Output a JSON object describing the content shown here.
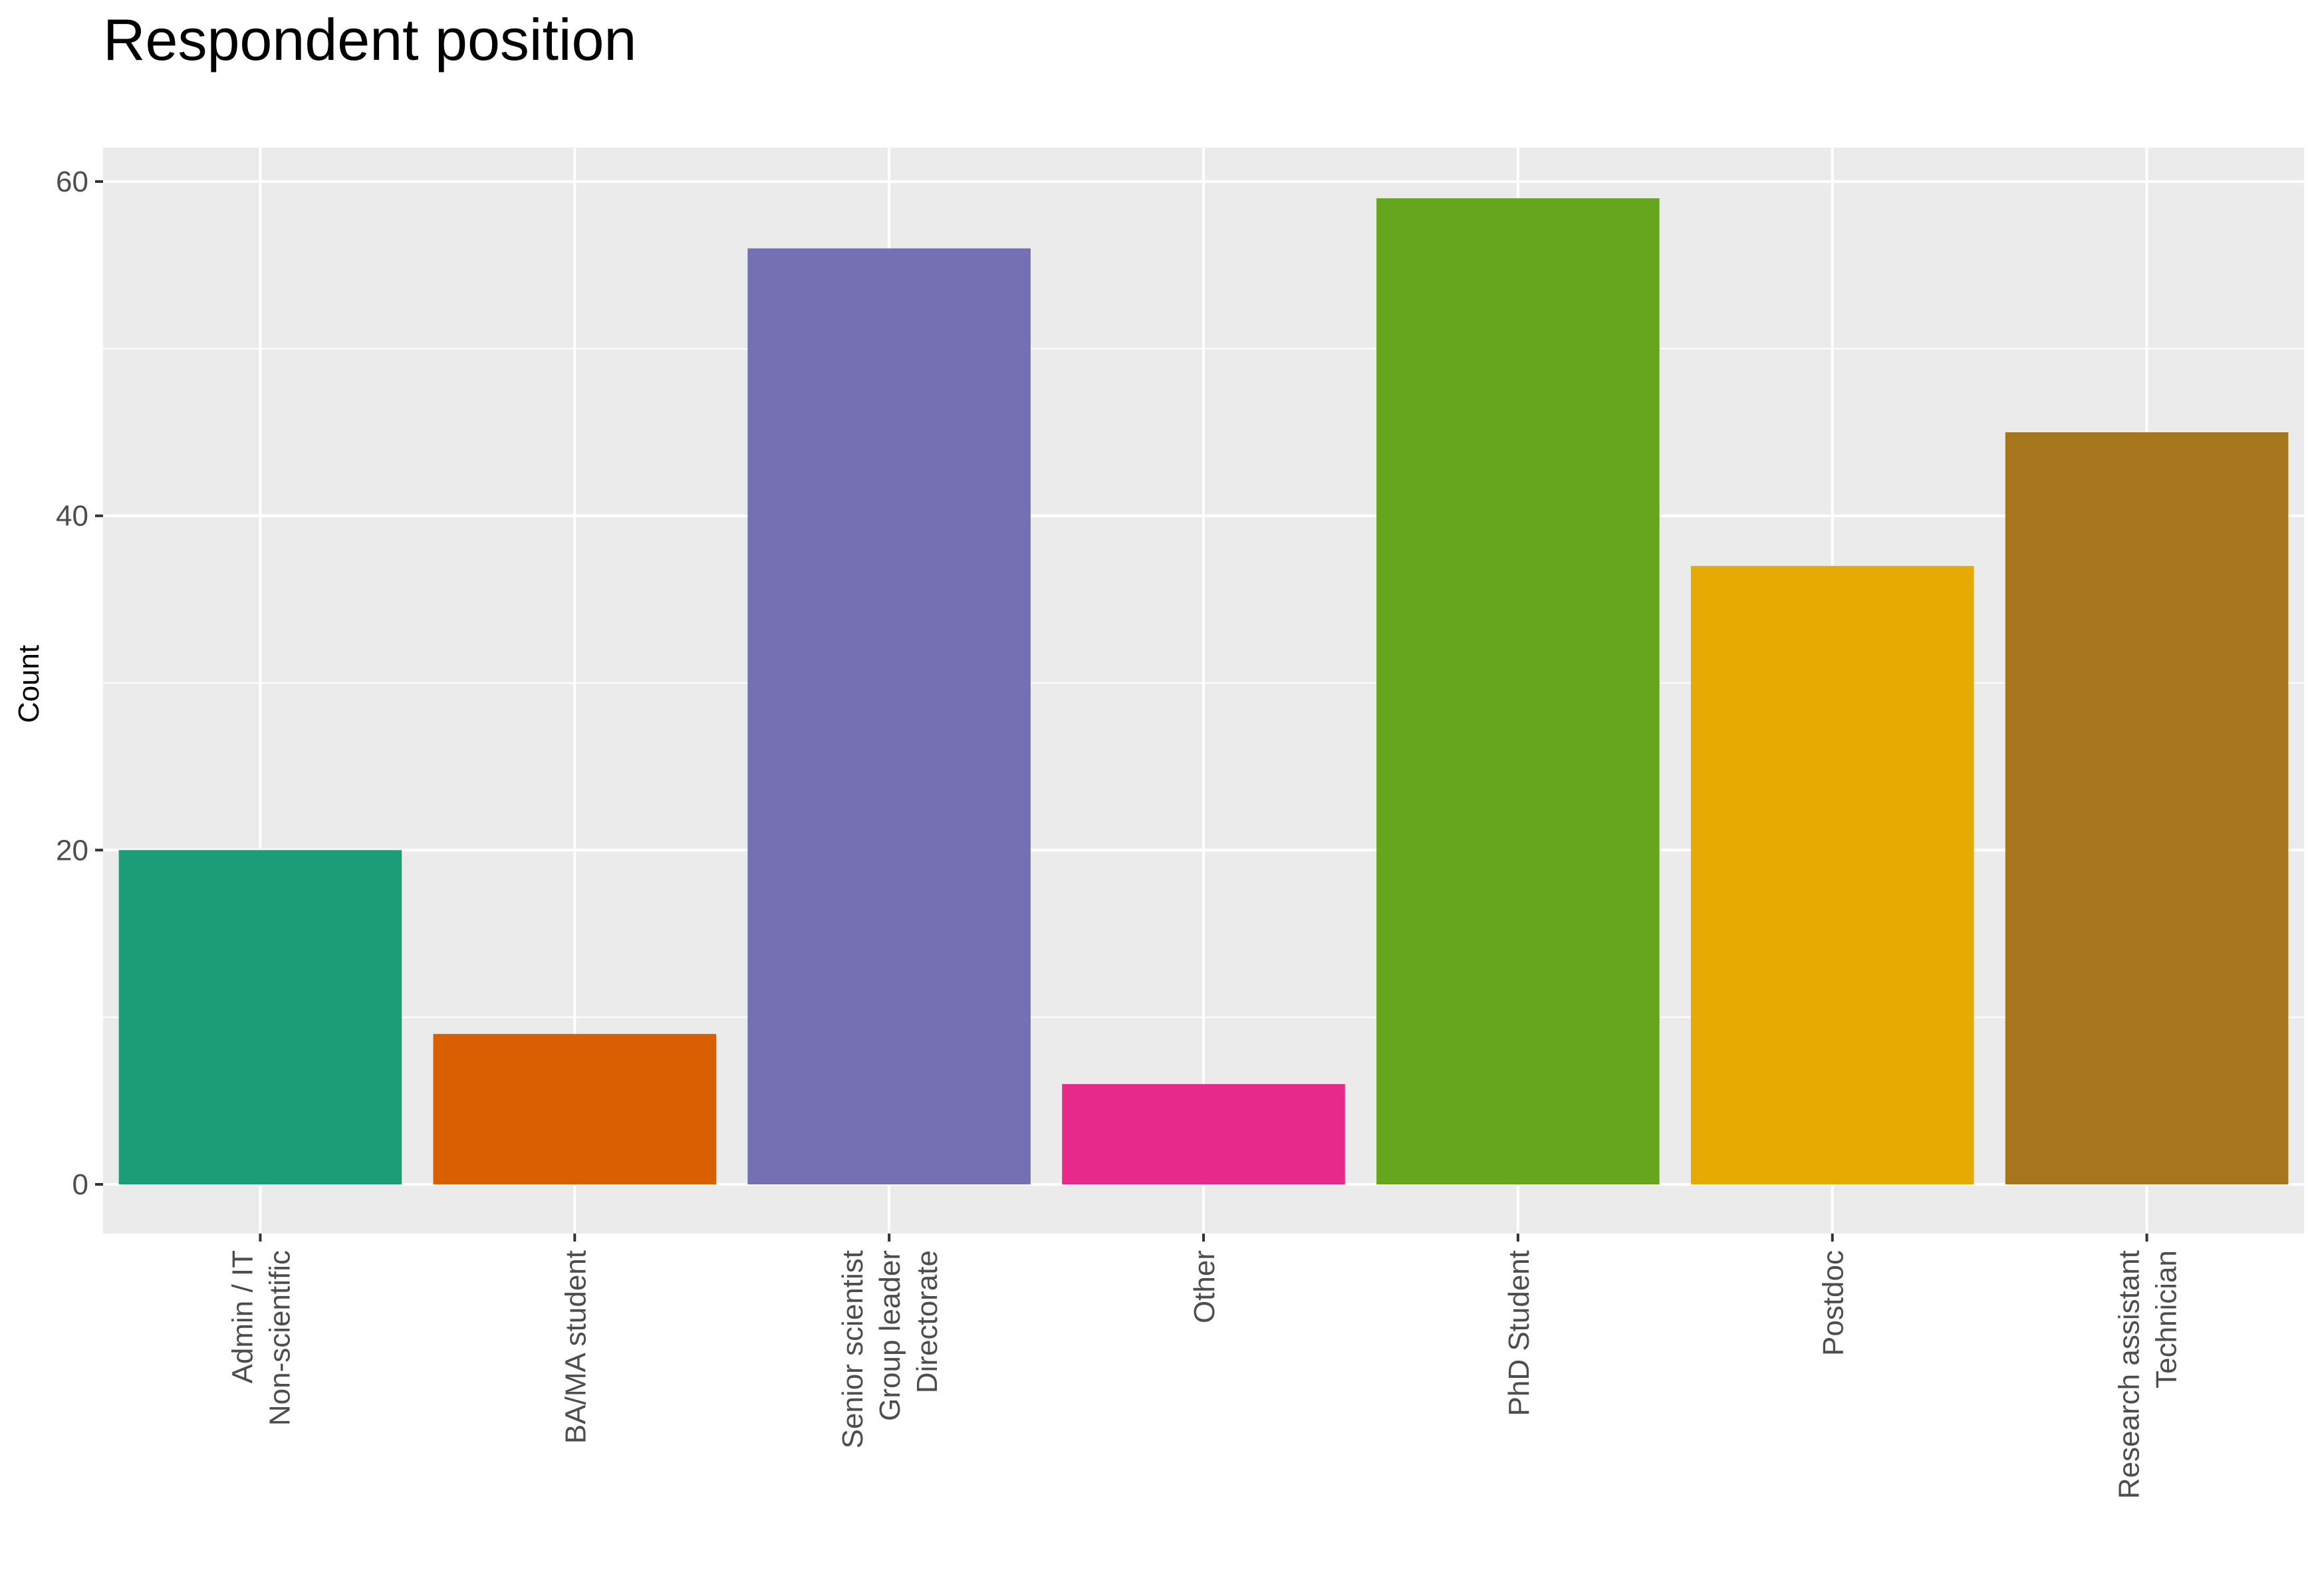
{
  "chart_data": {
    "type": "bar",
    "title": "Respondent position",
    "xlabel": "",
    "ylabel": "Count",
    "categories": [
      [
        "Admin / IT",
        "Non-scientific"
      ],
      [
        "BA/MA student"
      ],
      [
        "Senior scientist",
        "Group leader",
        "Directorate"
      ],
      [
        "Other"
      ],
      [
        "PhD Student"
      ],
      [
        "Postdoc"
      ],
      [
        "Research assistant",
        "Technician"
      ]
    ],
    "values": [
      20,
      9,
      56,
      6,
      59,
      37,
      45
    ],
    "colors": [
      "#1b9e77",
      "#d95f02",
      "#7570b3",
      "#e7298a",
      "#66a61e",
      "#e6ab02",
      "#a6761d"
    ],
    "ylim": [
      0,
      62
    ],
    "yticks": [
      0,
      20,
      40,
      60
    ],
    "grid": true,
    "legend": "none",
    "panel_background": "#ebebeb",
    "gridline_color": "#ffffff"
  }
}
